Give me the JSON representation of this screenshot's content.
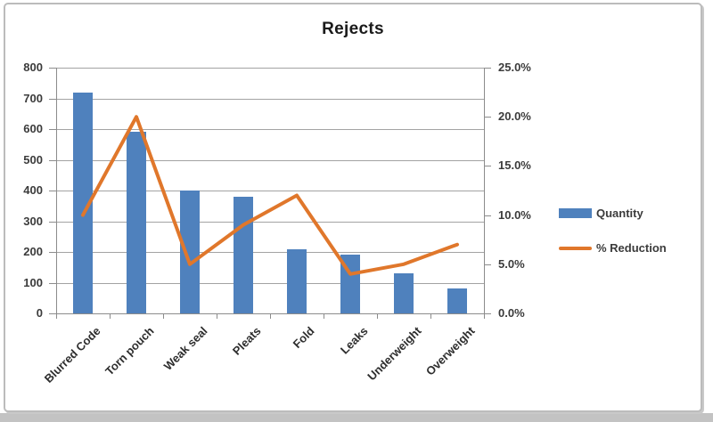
{
  "title": "Rejects",
  "colors": {
    "bar_fill": "#4f81bd",
    "line_stroke": "#e0772b",
    "gridline": "#a3a3a3",
    "axis": "#8c8c8c",
    "label_text": "#3b3b3b",
    "title_text": "#1a1a1a",
    "frame_border": "#bcbcbc"
  },
  "legend": {
    "items": [
      {
        "label": "Quantity",
        "swatch": "bar-swatch"
      },
      {
        "label": "% Reduction",
        "swatch": "line-swatch"
      }
    ]
  },
  "chart_data": {
    "type": "bar",
    "subtype": "combo-bar-line-dual-axis",
    "title": "Rejects",
    "categories": [
      "Blurred Code",
      "Torn pouch",
      "Weak seal",
      "Pleats",
      "Fold",
      "Leaks",
      "Underweight",
      "Overweight"
    ],
    "series": [
      {
        "name": "Quantity",
        "type": "bar",
        "axis": "left",
        "values": [
          720,
          590,
          400,
          380,
          210,
          190,
          130,
          80
        ]
      },
      {
        "name": "% Reduction",
        "type": "line",
        "axis": "right",
        "values": [
          10,
          20,
          5,
          9,
          12,
          4,
          5,
          7
        ],
        "unit": "%"
      }
    ],
    "left_axis": {
      "min": 0,
      "max": 800,
      "step": 100,
      "tick_labels": [
        "800",
        "700",
        "600",
        "500",
        "400",
        "300",
        "200",
        "100",
        "0"
      ]
    },
    "right_axis": {
      "min": 0,
      "max": 25,
      "step": 5,
      "tick_labels": [
        "25.0%",
        "20.0%",
        "15.0%",
        "10.0%",
        "5.0%",
        "0.0%"
      ]
    },
    "xlabel": "",
    "ylabel": "",
    "grid": true,
    "legend_position": "right",
    "legend_entries": [
      "Quantity",
      "% Reduction"
    ]
  }
}
